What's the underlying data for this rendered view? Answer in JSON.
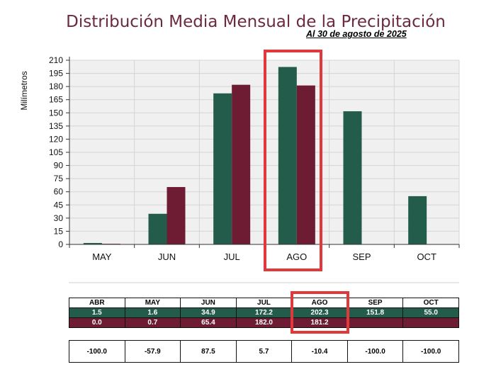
{
  "chart_data": {
    "type": "bar",
    "title": "Distribución Media Mensual de la Precipitación",
    "subtitle": "Al 30 de agosto de 2025",
    "ylabel": "Milímetros",
    "ylim": [
      0,
      210
    ],
    "yticks": [
      0,
      15,
      30,
      45,
      60,
      75,
      90,
      105,
      120,
      135,
      150,
      165,
      180,
      195,
      210
    ],
    "categories": [
      "MAY",
      "JUN",
      "JUL",
      "AGO",
      "SEP",
      "OCT"
    ],
    "highlight": "AGO",
    "colors": {
      "series_a": "#245c4c",
      "series_b": "#6d1c33",
      "highlight": "#e0393b"
    },
    "series": [
      {
        "values": [
          1.6,
          34.9,
          172.2,
          202.3,
          151.8,
          55.0
        ]
      },
      {
        "values": [
          0.7,
          65.4,
          182.0,
          181.2,
          null,
          null
        ]
      }
    ],
    "grid": true
  },
  "table": {
    "headers": [
      "ABR",
      "MAY",
      "JUN",
      "JUL",
      "AGO",
      "SEP",
      "OCT"
    ],
    "rows": [
      [
        "1.5",
        "1.6",
        "34.9",
        "172.2",
        "202.3",
        "151.8",
        "55.0"
      ],
      [
        "0.0",
        "0.7",
        "65.4",
        "182.0",
        "181.2",
        "",
        ""
      ]
    ],
    "diff": [
      "-100.0",
      "-57.9",
      "87.5",
      "5.7",
      "-10.4",
      "-100.0",
      "-100.0"
    ]
  }
}
